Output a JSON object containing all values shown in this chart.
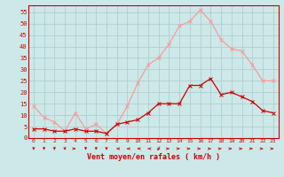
{
  "hours": [
    0,
    1,
    2,
    3,
    4,
    5,
    6,
    7,
    8,
    9,
    10,
    11,
    12,
    13,
    14,
    15,
    16,
    17,
    18,
    19,
    20,
    21,
    22,
    23
  ],
  "wind_avg": [
    4,
    4,
    3,
    3,
    4,
    3,
    3,
    2,
    6,
    7,
    8,
    11,
    15,
    15,
    15,
    23,
    23,
    26,
    19,
    20,
    18,
    16,
    12,
    11
  ],
  "wind_gust": [
    14,
    9,
    7,
    3,
    11,
    4,
    6,
    2,
    6,
    14,
    24,
    32,
    35,
    41,
    49,
    51,
    56,
    51,
    43,
    39,
    38,
    32,
    25,
    25
  ],
  "bg_color": "#cce8e8",
  "grid_color": "#aacaca",
  "avg_color": "#cc0000",
  "gust_color": "#ff9999",
  "xlabel": "Vent moyen/en rafales ( km/h )",
  "xlabel_color": "#cc0000",
  "ylabel_ticks": [
    0,
    5,
    10,
    15,
    20,
    25,
    30,
    35,
    40,
    45,
    50,
    55
  ],
  "ylim": [
    0,
    58
  ],
  "xlim": [
    -0.5,
    23.5
  ]
}
